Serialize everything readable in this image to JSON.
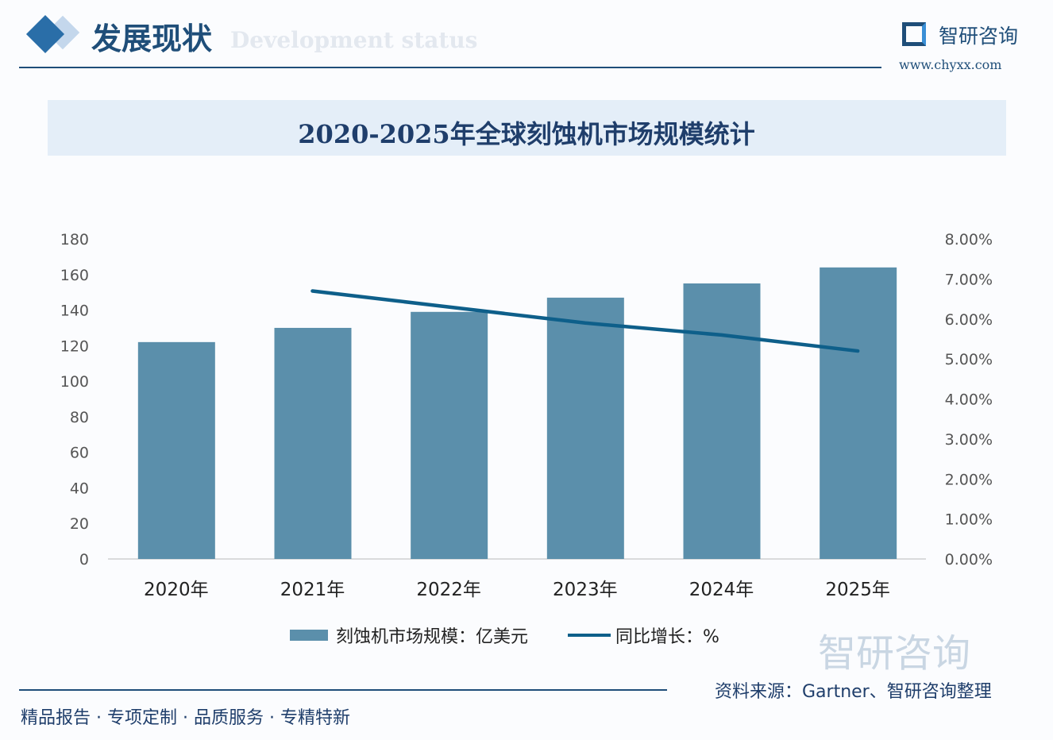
{
  "header": {
    "title": "发展现状",
    "subtitle": "Development status",
    "logo_name": "智研咨询",
    "logo_url": "www.chyxx.com"
  },
  "chart_data": {
    "type": "bar",
    "title": "2020-2025年全球刻蚀机市场规模统计",
    "categories": [
      "2020年",
      "2021年",
      "2022年",
      "2023年",
      "2024年",
      "2025年"
    ],
    "series": [
      {
        "name": "刻蚀机市场规模：亿美元",
        "type": "bar",
        "axis": "left",
        "values": [
          122,
          130,
          139,
          147,
          155,
          164
        ],
        "color": "#5b8fab"
      },
      {
        "name": "同比增长：%",
        "type": "line",
        "axis": "right",
        "values": [
          null,
          6.7,
          6.3,
          5.9,
          5.6,
          5.2
        ],
        "color": "#0e5f8a"
      }
    ],
    "ylim": [
      0,
      180
    ],
    "yticks": [
      "0",
      "20",
      "40",
      "60",
      "80",
      "100",
      "120",
      "140",
      "160",
      "180"
    ],
    "y2lim": [
      0,
      8
    ],
    "y2ticks": [
      "0.00%",
      "1.00%",
      "2.00%",
      "3.00%",
      "4.00%",
      "5.00%",
      "6.00%",
      "7.00%",
      "8.00%"
    ],
    "grid": false,
    "legend": "bottom"
  },
  "footer": {
    "slogan": "精品报告 · 专项定制 · 品质服务 · 专精特新",
    "source": "资料来源：Gartner、智研咨询整理",
    "watermark": "智研咨询"
  }
}
